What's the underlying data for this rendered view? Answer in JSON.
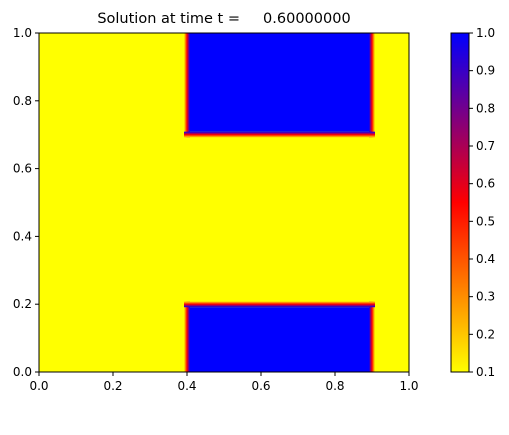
{
  "chart_data": {
    "type": "heatmap",
    "title": "Solution at time t =     0.60000000",
    "xlabel": "",
    "ylabel": "",
    "xlim": [
      0.0,
      1.0
    ],
    "ylim": [
      0.0,
      1.0
    ],
    "xticks": [
      "0.0",
      "0.2",
      "0.4",
      "0.6",
      "0.8",
      "1.0"
    ],
    "yticks": [
      "0.0",
      "0.2",
      "0.4",
      "0.6",
      "0.8",
      "1.0"
    ],
    "background_value": 0.1,
    "regions": [
      {
        "x": [
          0.4,
          0.9
        ],
        "y": [
          0.7,
          1.0
        ],
        "value": 1.0
      },
      {
        "x": [
          0.4,
          0.9
        ],
        "y": [
          0.0,
          0.2
        ],
        "value": 1.0
      }
    ],
    "colorbar": {
      "min": 0.1,
      "max": 1.0,
      "ticks": [
        "0.1",
        "0.2",
        "0.3",
        "0.4",
        "0.5",
        "0.6",
        "0.7",
        "0.8",
        "0.9",
        "1.0"
      ],
      "colormap": [
        "#ffff00",
        "#ff0000",
        "#0000ff"
      ]
    },
    "grid": false
  }
}
